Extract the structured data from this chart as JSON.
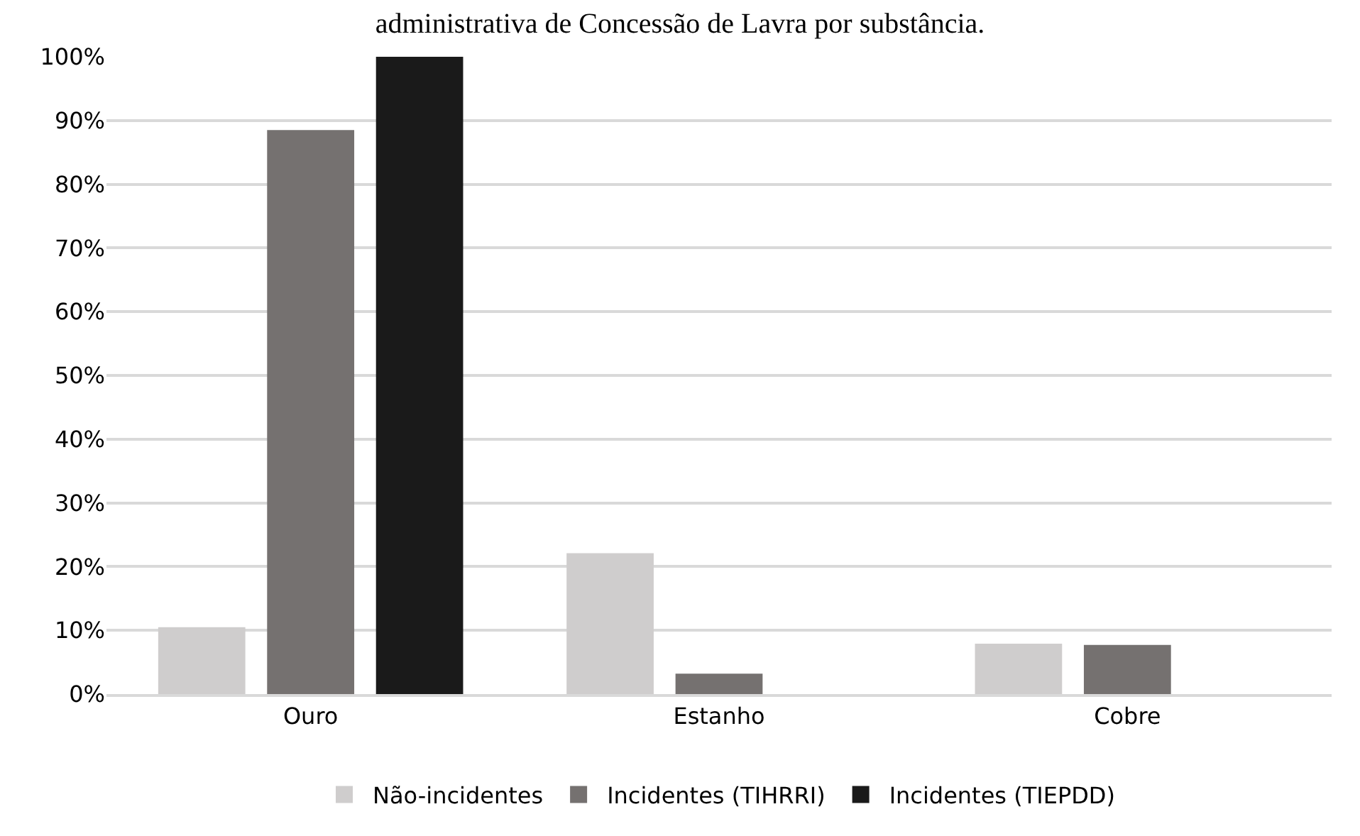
{
  "chart_data": {
    "type": "bar",
    "title": "administrativa de Concessão de Lavra por substância.",
    "categories": [
      "Ouro",
      "Estanho",
      "Cobre"
    ],
    "series": [
      {
        "name": "Não-incidentes",
        "color": "#cfcdcd",
        "values": [
          10.5,
          22.1,
          7.9
        ]
      },
      {
        "name": "Incidentes (TIHRRI)",
        "color": "#757170",
        "values": [
          88.5,
          3.2,
          7.7
        ]
      },
      {
        "name": "Incidentes (TIEPDD)",
        "color": "#1a1a1a",
        "values": [
          100,
          0,
          0
        ]
      }
    ],
    "ylim": [
      0,
      100
    ],
    "yticks": [
      {
        "value": 0,
        "label": "0%"
      },
      {
        "value": 10,
        "label": "10%"
      },
      {
        "value": 20,
        "label": "20%"
      },
      {
        "value": 30,
        "label": "30%"
      },
      {
        "value": 40,
        "label": "40%"
      },
      {
        "value": 50,
        "label": "50%"
      },
      {
        "value": 60,
        "label": "60%"
      },
      {
        "value": 70,
        "label": "70%"
      },
      {
        "value": 80,
        "label": "80%"
      },
      {
        "value": 90,
        "label": "90%"
      },
      {
        "value": 100,
        "label": "100%"
      }
    ],
    "grid": "y",
    "legend": "bottom"
  }
}
